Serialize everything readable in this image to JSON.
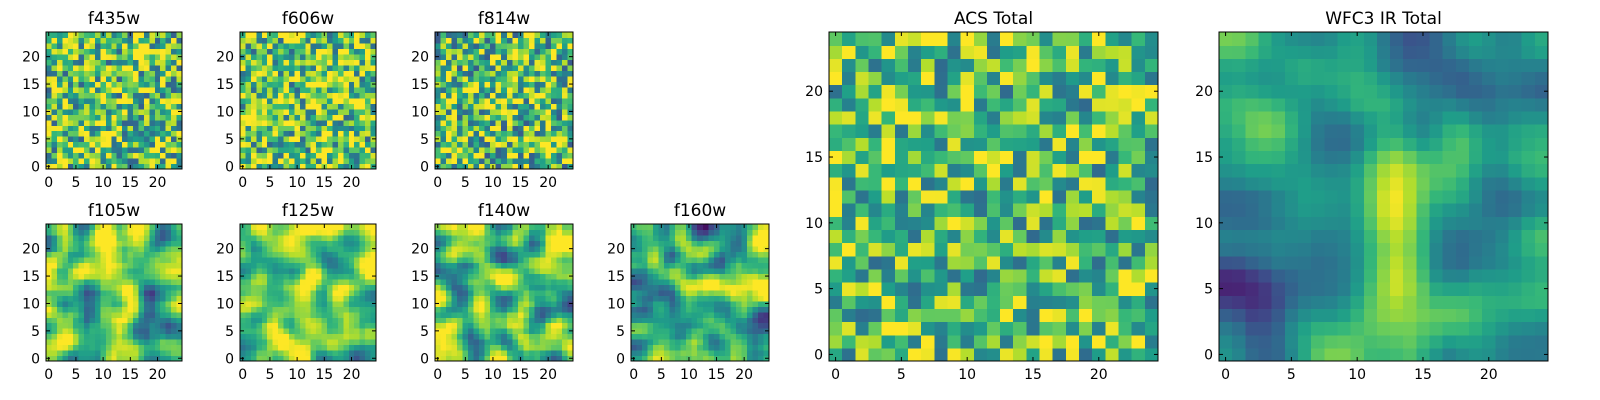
{
  "chart_data": [
    {
      "type": "heatmap",
      "title": "f435w",
      "grid_size": 25,
      "xticks": [
        "0",
        "5",
        "10",
        "15",
        "20"
      ],
      "yticks": [
        "0",
        "5",
        "10",
        "15",
        "20"
      ],
      "colormap": "viridis",
      "smoothness": 0,
      "brightness": 0.72,
      "spread": 0.42,
      "hotspots": []
    },
    {
      "type": "heatmap",
      "title": "f606w",
      "grid_size": 25,
      "xticks": [
        "0",
        "5",
        "10",
        "15",
        "20"
      ],
      "yticks": [
        "0",
        "5",
        "10",
        "15",
        "20"
      ],
      "colormap": "viridis",
      "smoothness": 0,
      "brightness": 0.74,
      "spread": 0.42,
      "hotspots": []
    },
    {
      "type": "heatmap",
      "title": "f814w",
      "grid_size": 25,
      "xticks": [
        "0",
        "5",
        "10",
        "15",
        "20"
      ],
      "yticks": [
        "0",
        "5",
        "10",
        "15",
        "20"
      ],
      "colormap": "viridis",
      "smoothness": 0,
      "brightness": 0.7,
      "spread": 0.42,
      "hotspots": [
        [
          12,
          14,
          0.15
        ]
      ]
    },
    {
      "type": "heatmap",
      "title": "f105w",
      "grid_size": 25,
      "xticks": [
        "0",
        "5",
        "10",
        "15",
        "20"
      ],
      "yticks": [
        "0",
        "5",
        "10",
        "15",
        "20"
      ],
      "colormap": "viridis",
      "smoothness": 2,
      "brightness": 0.72,
      "spread": 0.55,
      "hotspots": [
        [
          12,
          13,
          0.3
        ]
      ]
    },
    {
      "type": "heatmap",
      "title": "f125w",
      "grid_size": 25,
      "xticks": [
        "0",
        "5",
        "10",
        "15",
        "20"
      ],
      "yticks": [
        "0",
        "5",
        "10",
        "15",
        "20"
      ],
      "colormap": "viridis",
      "smoothness": 2,
      "brightness": 0.76,
      "spread": 0.5,
      "hotspots": [
        [
          12,
          12,
          0.25
        ]
      ]
    },
    {
      "type": "heatmap",
      "title": "f140w",
      "grid_size": 25,
      "xticks": [
        "0",
        "5",
        "10",
        "15",
        "20"
      ],
      "yticks": [
        "0",
        "5",
        "10",
        "15",
        "20"
      ],
      "colormap": "viridis",
      "smoothness": 2,
      "brightness": 0.64,
      "spread": 0.55,
      "hotspots": [
        [
          12,
          12,
          0.25
        ]
      ]
    },
    {
      "type": "heatmap",
      "title": "f160w",
      "grid_size": 25,
      "xticks": [
        "0",
        "5",
        "10",
        "15",
        "20"
      ],
      "yticks": [
        "0",
        "5",
        "10",
        "15",
        "20"
      ],
      "colormap": "viridis",
      "smoothness": 2,
      "brightness": 0.64,
      "spread": 0.6,
      "hotspots": [
        [
          12,
          11,
          0.3
        ]
      ]
    },
    {
      "type": "heatmap",
      "title": "ACS Total",
      "grid_size": 25,
      "xticks": [
        "0",
        "5",
        "10",
        "15",
        "20"
      ],
      "yticks": [
        "0",
        "5",
        "10",
        "15",
        "20"
      ],
      "colormap": "viridis",
      "smoothness": 0,
      "brightness": 0.7,
      "spread": 0.36,
      "hotspots": []
    },
    {
      "type": "heatmap",
      "title": "WFC3 IR Total",
      "grid_size": 25,
      "xticks": [
        "0",
        "5",
        "10",
        "15",
        "20"
      ],
      "yticks": [
        "0",
        "5",
        "10",
        "15",
        "20"
      ],
      "colormap": "viridis",
      "smoothness": 3,
      "brightness": 0.5,
      "spread": 0.4,
      "hotspots": [
        [
          12,
          11,
          0.45
        ],
        [
          2,
          20,
          0.12
        ],
        [
          16,
          22,
          0.12
        ]
      ]
    }
  ]
}
